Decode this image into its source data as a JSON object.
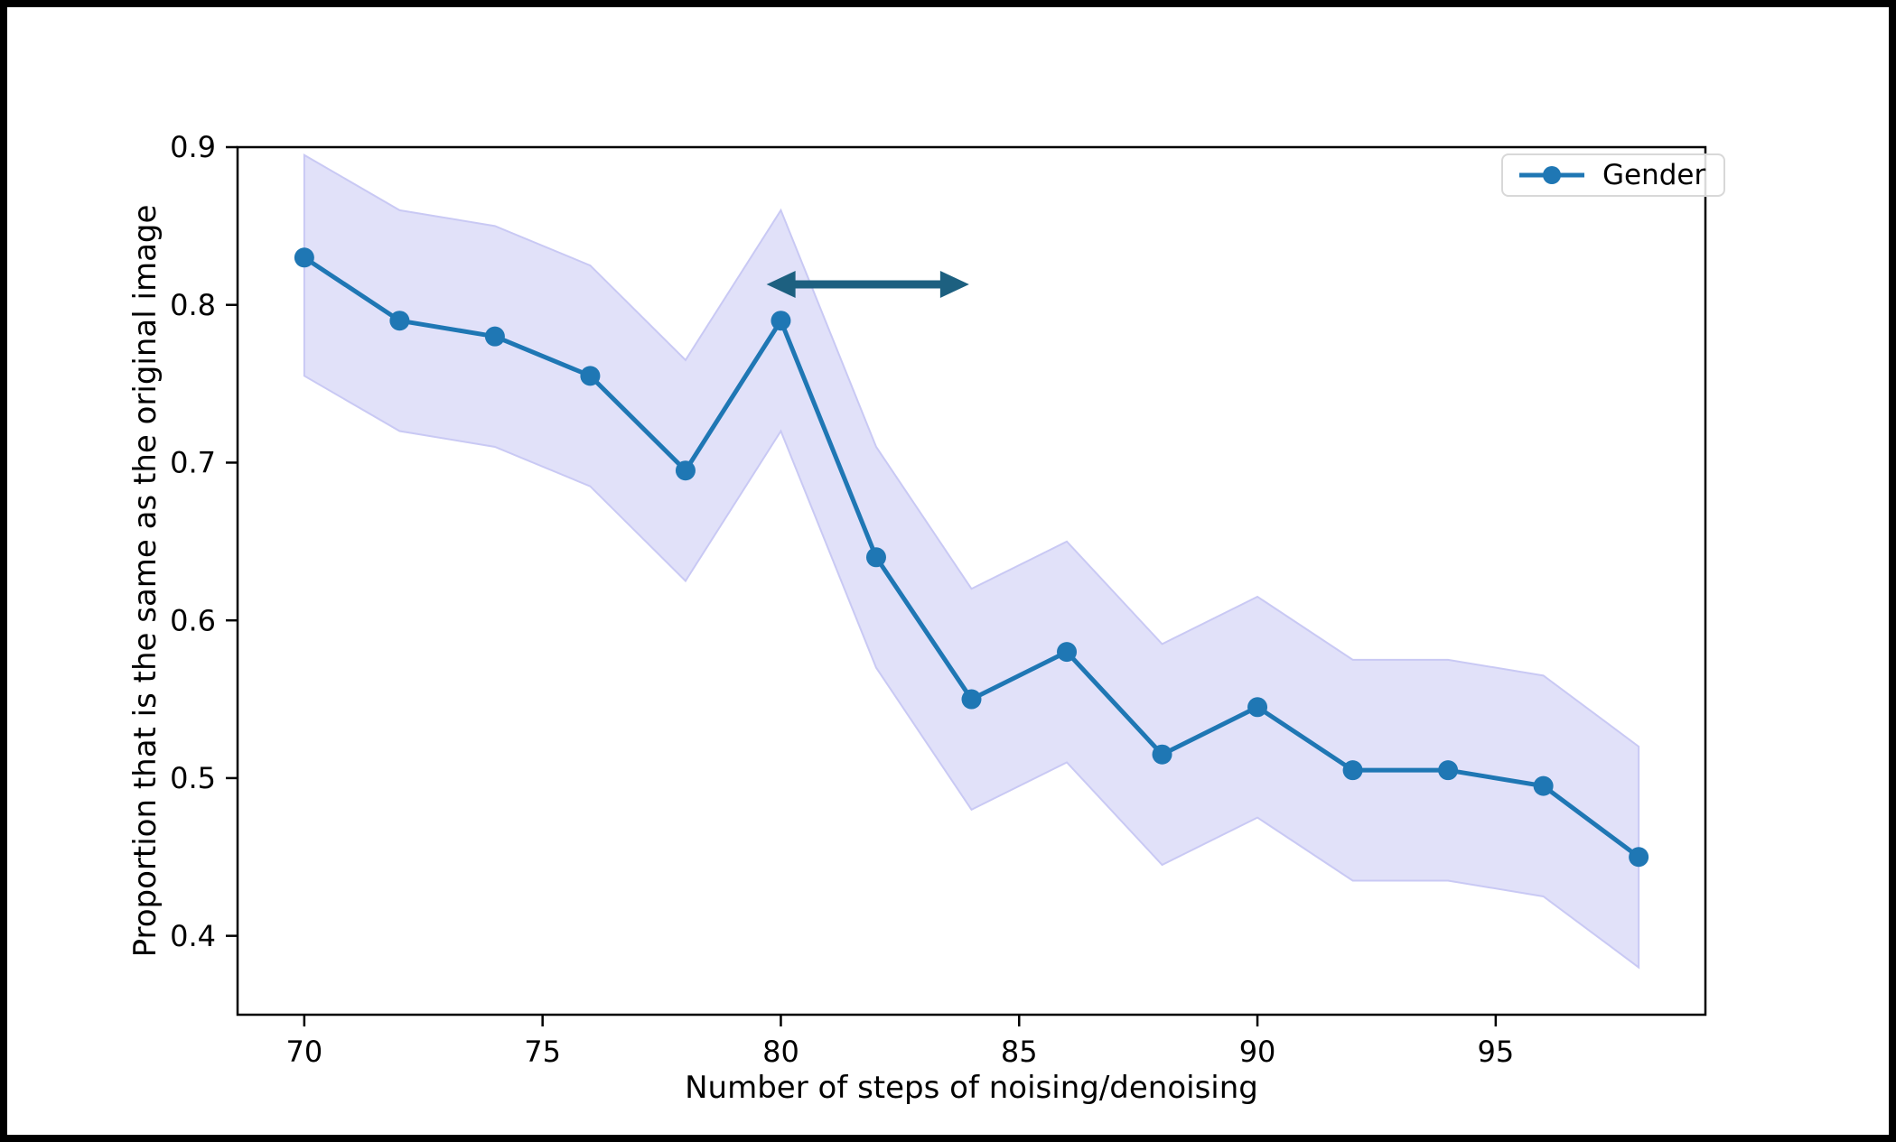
{
  "figure": {
    "background": "#ffffff",
    "frame_color": "#000000"
  },
  "chart_data": {
    "type": "line",
    "title": "",
    "xlabel": "Number of steps of noising/denoising",
    "ylabel": "Proportion that is the same as the original image",
    "x": [
      70,
      72,
      74,
      76,
      78,
      80,
      82,
      84,
      86,
      88,
      90,
      92,
      94,
      96,
      98
    ],
    "series": [
      {
        "name": "Gender",
        "color": "#1f77b4",
        "marker": "circle",
        "values": [
          0.83,
          0.79,
          0.78,
          0.755,
          0.695,
          0.79,
          0.64,
          0.55,
          0.58,
          0.515,
          0.545,
          0.505,
          0.505,
          0.495,
          0.45
        ],
        "band_upper": [
          0.895,
          0.86,
          0.85,
          0.825,
          0.765,
          0.86,
          0.71,
          0.62,
          0.65,
          0.585,
          0.615,
          0.575,
          0.575,
          0.565,
          0.52
        ],
        "band_lower": [
          0.755,
          0.72,
          0.71,
          0.685,
          0.625,
          0.72,
          0.57,
          0.48,
          0.51,
          0.445,
          0.475,
          0.435,
          0.435,
          0.425,
          0.38
        ],
        "band_color": "#e1e1f9",
        "band_edge_color": "#c9c9f4"
      }
    ],
    "xlim": [
      68.6,
      99.4
    ],
    "ylim": [
      0.35,
      0.9
    ],
    "xticks": [
      70,
      75,
      80,
      85,
      90,
      95
    ],
    "xtick_labels": [
      "70",
      "75",
      "80",
      "85",
      "90",
      "95"
    ],
    "yticks": [
      0.4,
      0.5,
      0.6,
      0.7,
      0.8,
      0.9
    ],
    "ytick_labels": [
      "0.4",
      "0.5",
      "0.6",
      "0.7",
      "0.8",
      "0.9"
    ],
    "grid": false,
    "legend_position": "upper right",
    "annotations": [
      {
        "type": "double-arrow",
        "x_start": 79.7,
        "x_end": 83.95,
        "y": 0.813,
        "color": "#1d6080"
      }
    ]
  }
}
